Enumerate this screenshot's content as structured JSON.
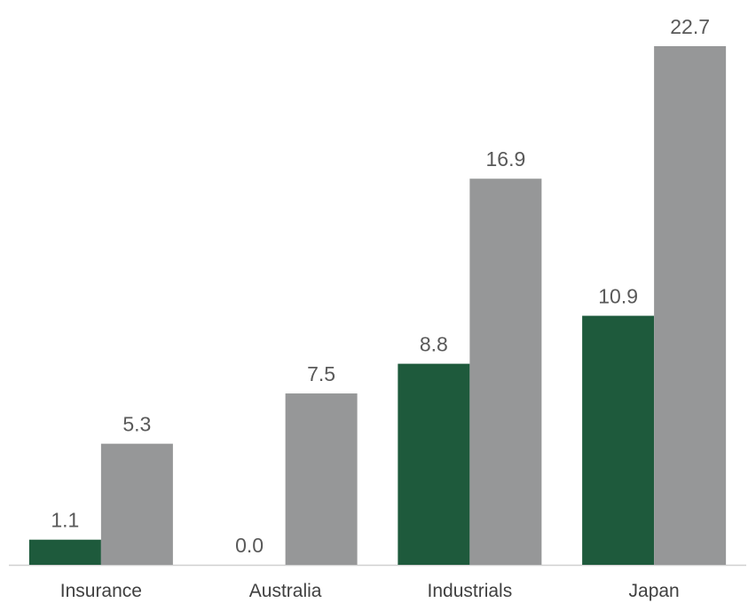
{
  "chart_data": {
    "type": "bar",
    "title": "",
    "xlabel": "",
    "ylabel": "",
    "categories": [
      "Insurance",
      "Australia",
      "Industrials",
      "Japan"
    ],
    "series": [
      {
        "color": "#1e5a3c",
        "values": [
          1.1,
          0.0,
          8.8,
          10.9
        ],
        "labels": [
          "1.1",
          "0.0",
          "8.8",
          "10.9"
        ]
      },
      {
        "color": "#969798",
        "values": [
          5.3,
          7.5,
          16.9,
          22.7
        ],
        "labels": [
          "5.3",
          "7.5",
          "16.9",
          "22.7"
        ]
      }
    ],
    "ylim": [
      0,
      22.7
    ],
    "grid": false,
    "legend": "none",
    "baseline_color": "#d0d0d0"
  }
}
